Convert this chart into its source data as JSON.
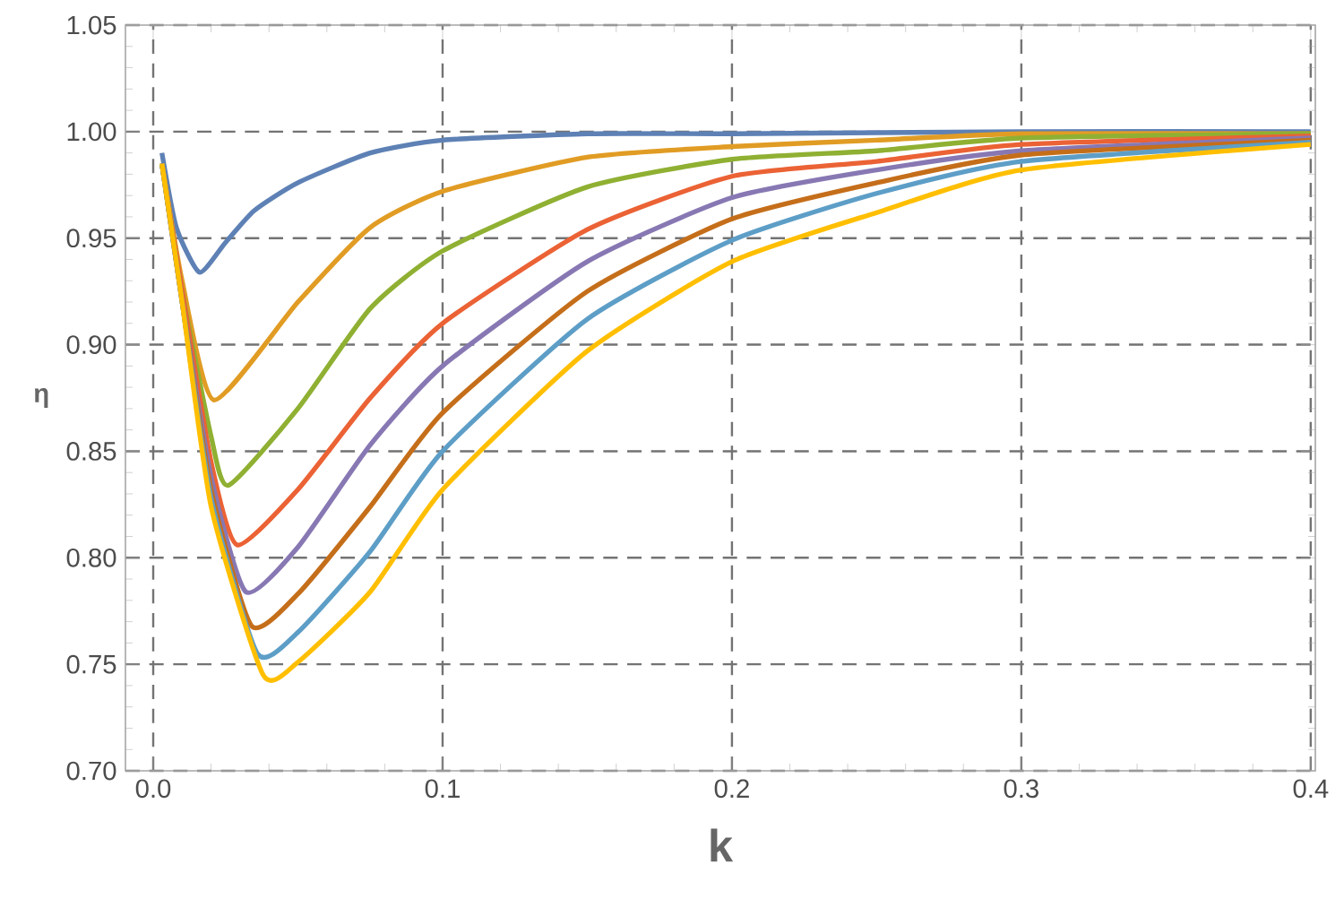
{
  "chart_data": {
    "type": "line",
    "xlabel": "k",
    "ylabel": "η",
    "xlim": [
      -0.0096,
      0.4016
    ],
    "ylim": [
      0.7,
      1.05
    ],
    "xticks": [
      {
        "value": 0,
        "label": "0.0"
      },
      0.1,
      0.2,
      0.3,
      0.4
    ],
    "yticks": [
      {
        "value": 0.7,
        "label": "0.70"
      },
      0.75,
      {
        "value": 0.8,
        "label": "0.80"
      },
      0.85,
      {
        "value": 0.9,
        "label": "0.90"
      },
      0.95,
      {
        "value": 1.0,
        "label": "1.00"
      },
      1.05
    ],
    "grid": true,
    "marker": "none",
    "series": [
      {
        "color": "#5e81b5",
        "x": [
          0.003,
          0.008,
          0.016,
          0.025,
          0.035,
          0.05,
          0.075,
          0.1,
          0.15,
          0.2,
          0.3,
          0.4
        ],
        "values": [
          0.99,
          0.955,
          0.934,
          0.948,
          0.963,
          0.976,
          0.99,
          0.996,
          0.999,
          0.999,
          1.0,
          1.0
        ]
      },
      {
        "color": "#e19c24",
        "x": [
          0.003,
          0.01,
          0.021,
          0.05,
          0.075,
          0.1,
          0.15,
          0.2,
          0.25,
          0.3,
          0.4
        ],
        "values": [
          0.985,
          0.93,
          0.874,
          0.92,
          0.955,
          0.972,
          0.988,
          0.993,
          0.996,
          0.999,
          0.999
        ]
      },
      {
        "color": "#8fb032",
        "x": [
          0.003,
          0.01,
          0.02,
          0.026,
          0.05,
          0.075,
          0.1,
          0.15,
          0.2,
          0.25,
          0.3,
          0.4
        ],
        "values": [
          0.985,
          0.925,
          0.857,
          0.834,
          0.87,
          0.917,
          0.944,
          0.974,
          0.987,
          0.991,
          0.997,
          0.999
        ]
      },
      {
        "color": "#eb6235",
        "x": [
          0.003,
          0.01,
          0.02,
          0.029,
          0.05,
          0.075,
          0.1,
          0.15,
          0.2,
          0.25,
          0.3,
          0.4
        ],
        "values": [
          0.985,
          0.925,
          0.845,
          0.806,
          0.832,
          0.875,
          0.91,
          0.954,
          0.979,
          0.986,
          0.994,
          0.998
        ]
      },
      {
        "color": "#8778b3",
        "x": [
          0.003,
          0.01,
          0.02,
          0.032,
          0.05,
          0.075,
          0.1,
          0.15,
          0.2,
          0.25,
          0.3,
          0.4
        ],
        "values": [
          0.985,
          0.92,
          0.838,
          0.784,
          0.805,
          0.853,
          0.89,
          0.939,
          0.969,
          0.982,
          0.991,
          0.997
        ]
      },
      {
        "color": "#c56e1a",
        "x": [
          0.003,
          0.01,
          0.02,
          0.034,
          0.05,
          0.075,
          0.1,
          0.15,
          0.2,
          0.25,
          0.3,
          0.4
        ],
        "values": [
          0.985,
          0.92,
          0.832,
          0.768,
          0.783,
          0.824,
          0.868,
          0.925,
          0.959,
          0.976,
          0.989,
          0.996
        ]
      },
      {
        "color": "#5d9ec7",
        "x": [
          0.003,
          0.01,
          0.02,
          0.036,
          0.05,
          0.075,
          0.1,
          0.15,
          0.2,
          0.25,
          0.3,
          0.4
        ],
        "values": [
          0.985,
          0.92,
          0.828,
          0.755,
          0.765,
          0.803,
          0.85,
          0.912,
          0.949,
          0.971,
          0.986,
          0.995
        ]
      },
      {
        "color": "#ffbf00",
        "x": [
          0.003,
          0.01,
          0.02,
          0.038,
          0.05,
          0.075,
          0.1,
          0.15,
          0.2,
          0.25,
          0.3,
          0.4
        ],
        "values": [
          0.985,
          0.92,
          0.824,
          0.745,
          0.751,
          0.784,
          0.832,
          0.897,
          0.939,
          0.962,
          0.982,
          0.994
        ]
      }
    ]
  }
}
